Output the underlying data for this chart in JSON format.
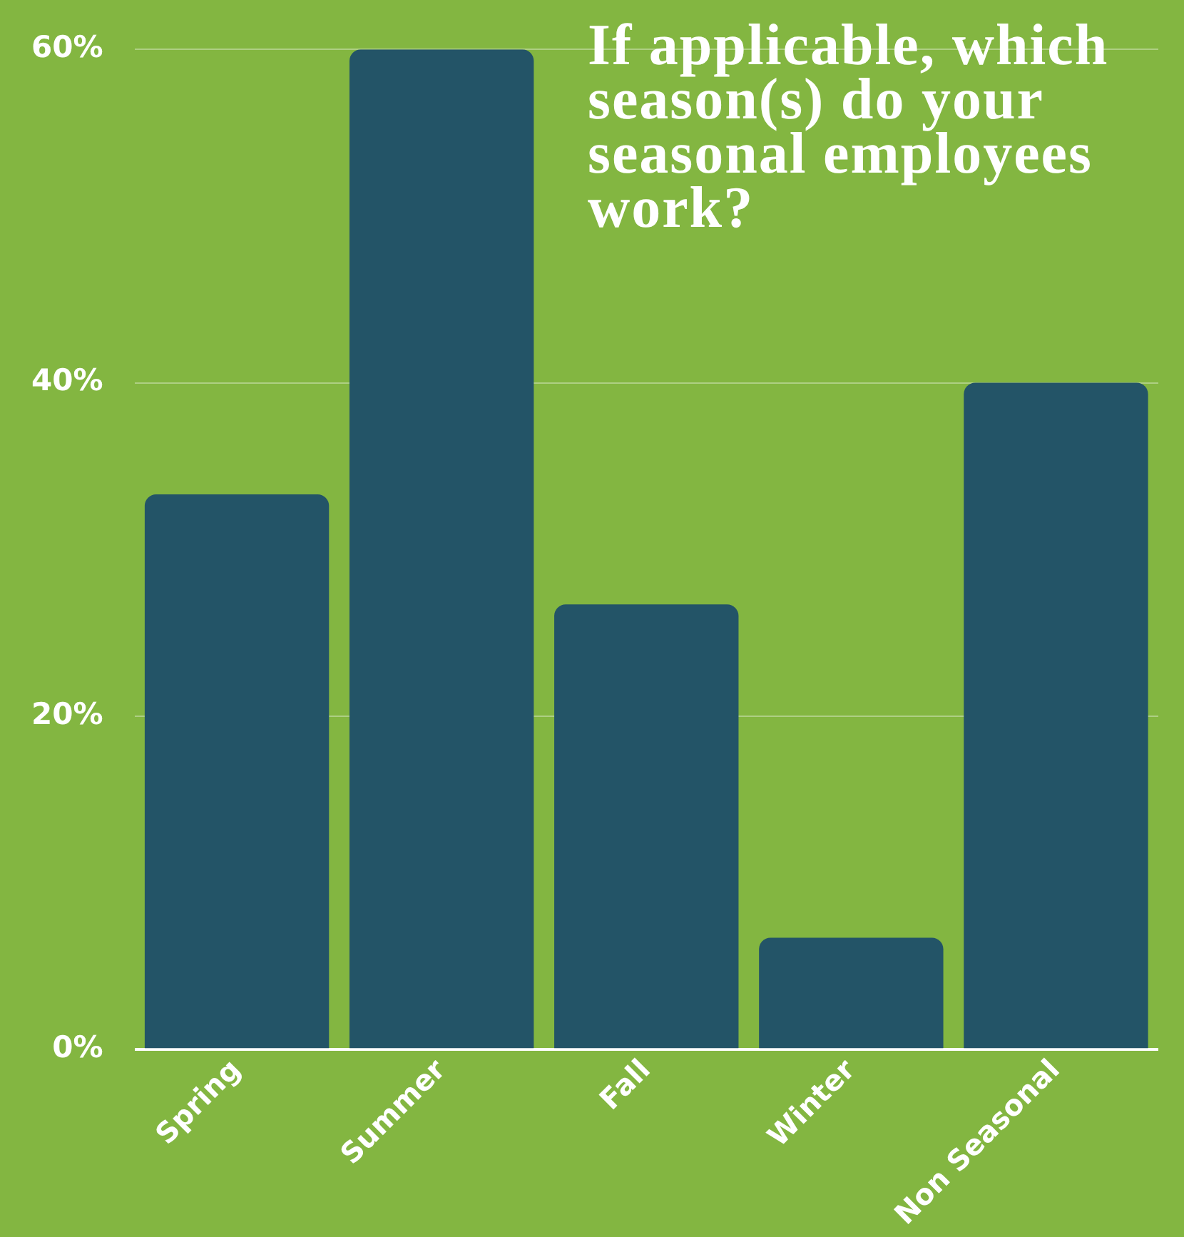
{
  "chart_data": {
    "type": "bar",
    "title": "If applicable, which season(s) do your seasonal employees work?",
    "categories": [
      "Spring",
      "Summer",
      "Fall",
      "Winter",
      "Non Seasonal"
    ],
    "values": [
      33.3,
      60,
      26.7,
      6.7,
      40
    ],
    "color": "#235467",
    "ylim": [
      0,
      60
    ],
    "yticks": [
      {
        "value": 0,
        "label": "0%"
      },
      {
        "value": 20,
        "label": "20%"
      },
      {
        "value": 40,
        "label": "40%"
      },
      {
        "value": 60,
        "label": "60%"
      }
    ],
    "grid": "y",
    "legend": false
  }
}
